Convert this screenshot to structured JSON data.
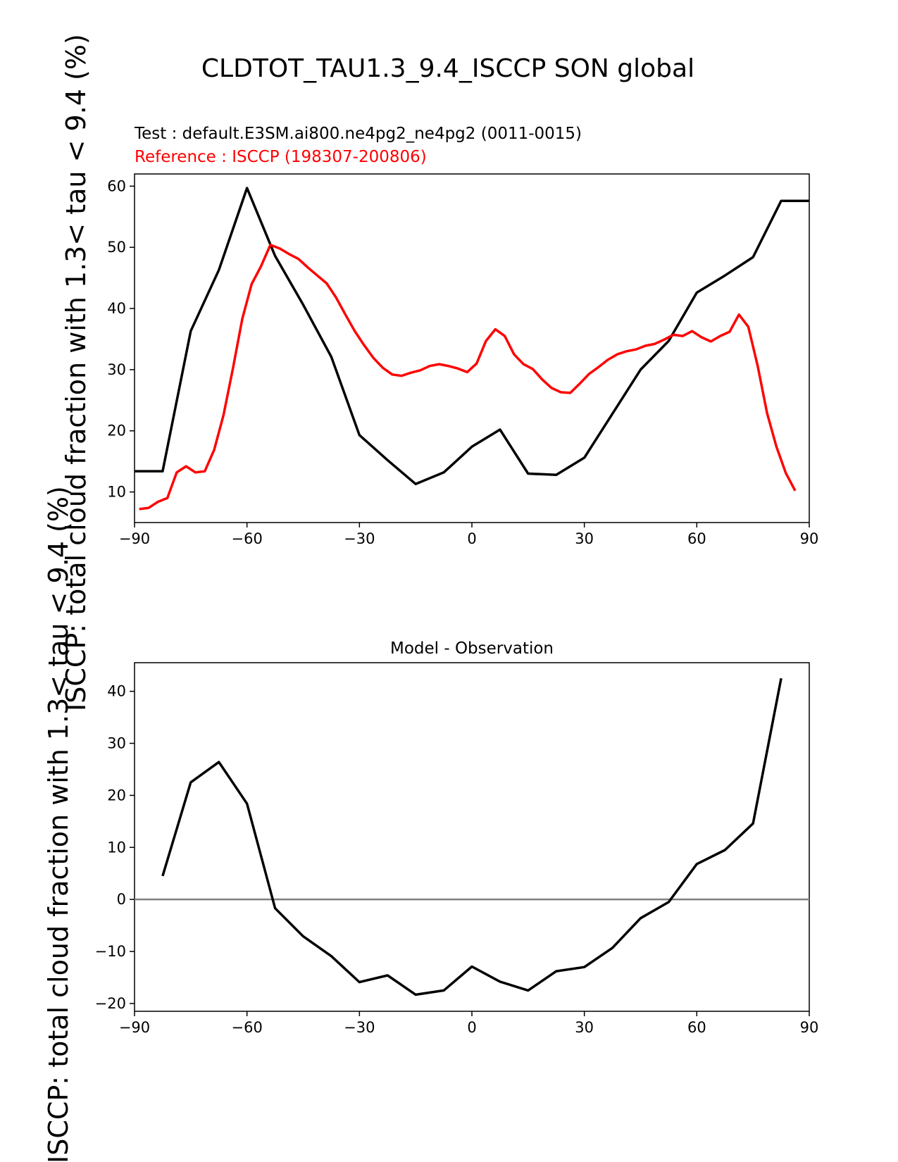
{
  "figure": {
    "title": "CLDTOT_TAU1.3_9.4_ISCCP SON global",
    "ylabel": "ISCCP: total cloud fraction with 1.3< tau < 9.4 (%)"
  },
  "colors": {
    "test": "#000000",
    "reference": "#ff0000",
    "zero_line": "#808080"
  },
  "chart_data": [
    {
      "type": "line",
      "subtitle_test": "Test : default.E3SM.ai800.ne4pg2_ne4pg2 (0011-0015)",
      "subtitle_reference": "Reference : ISCCP (198307-200806)",
      "xlim": [
        -90,
        90
      ],
      "ylim": [
        5,
        62
      ],
      "xticks": [
        -90,
        -60,
        -30,
        0,
        30,
        60,
        90
      ],
      "xtick_labels": [
        "−90",
        "−60",
        "−30",
        "0",
        "30",
        "60",
        "90"
      ],
      "yticks": [
        10,
        20,
        30,
        40,
        50,
        60
      ],
      "ytick_labels": [
        "10",
        "20",
        "30",
        "40",
        "50",
        "60"
      ],
      "series": [
        {
          "key": "test",
          "x": [
            -90,
            -82.5,
            -75,
            -67.5,
            -60,
            -52.5,
            -45,
            -37.5,
            -30,
            -22.5,
            -15,
            -7.5,
            0,
            7.5,
            15,
            22.5,
            30,
            37.5,
            45,
            52.5,
            60,
            67.5,
            75,
            82.5,
            90
          ],
          "y": [
            13.4,
            13.4,
            36.3,
            46.3,
            59.7,
            48.6,
            40.6,
            32.1,
            19.3,
            15.2,
            11.3,
            13.2,
            17.4,
            20.2,
            13.0,
            12.8,
            15.6,
            22.8,
            30.0,
            34.7,
            42.6,
            45.4,
            48.4,
            57.6,
            57.6
          ]
        },
        {
          "key": "reference",
          "x": [
            -88.75,
            -86.25,
            -83.75,
            -81.25,
            -78.75,
            -76.25,
            -73.75,
            -71.25,
            -68.75,
            -66.25,
            -63.75,
            -61.25,
            -58.75,
            -56.25,
            -53.75,
            -51.25,
            -48.75,
            -46.25,
            -43.75,
            -41.25,
            -38.75,
            -36.25,
            -33.75,
            -31.25,
            -28.75,
            -26.25,
            -23.75,
            -21.25,
            -18.75,
            -16.25,
            -13.75,
            -11.25,
            -8.75,
            -6.25,
            -3.75,
            -1.25,
            1.25,
            3.75,
            6.25,
            8.75,
            11.25,
            13.75,
            16.25,
            18.75,
            21.25,
            23.75,
            26.25,
            28.75,
            31.25,
            33.75,
            36.25,
            38.75,
            41.25,
            43.75,
            46.25,
            48.75,
            51.25,
            53.75,
            56.25,
            58.75,
            61.25,
            63.75,
            66.25,
            68.75,
            71.25,
            73.75,
            76.25,
            78.75,
            81.25,
            83.75,
            86.25
          ],
          "y": [
            7.2,
            7.4,
            8.4,
            9.0,
            13.2,
            14.2,
            13.2,
            13.4,
            16.9,
            22.6,
            30.2,
            38.3,
            44.0,
            46.9,
            50.4,
            49.8,
            48.9,
            48.1,
            46.7,
            45.4,
            44.1,
            41.8,
            39.0,
            36.3,
            34.0,
            31.9,
            30.3,
            29.2,
            29.0,
            29.5,
            29.9,
            30.6,
            30.9,
            30.6,
            30.2,
            29.6,
            31.0,
            34.7,
            36.6,
            35.5,
            32.5,
            30.9,
            30.1,
            28.4,
            27.0,
            26.3,
            26.2,
            27.7,
            29.3,
            30.4,
            31.6,
            32.5,
            33.0,
            33.3,
            33.9,
            34.2,
            34.9,
            35.7,
            35.5,
            36.3,
            35.3,
            34.6,
            35.5,
            36.2,
            39.0,
            37.0,
            30.6,
            22.9,
            17.4,
            13.1,
            10.2
          ]
        }
      ]
    },
    {
      "type": "line",
      "title": "Model - Observation",
      "xlim": [
        -90,
        90
      ],
      "ylim": [
        -21.5,
        45.5
      ],
      "xticks": [
        -90,
        -60,
        -30,
        0,
        30,
        60,
        90
      ],
      "xtick_labels": [
        "−90",
        "−60",
        "−30",
        "0",
        "30",
        "60",
        "90"
      ],
      "yticks": [
        -20,
        -10,
        0,
        10,
        20,
        30,
        40
      ],
      "ytick_labels": [
        "−20",
        "−10",
        "0",
        "10",
        "20",
        "30",
        "40"
      ],
      "zero_line": 0,
      "series": [
        {
          "key": "test",
          "x": [
            -82.5,
            -75,
            -67.5,
            -60,
            -52.5,
            -45,
            -37.5,
            -30,
            -22.5,
            -15,
            -7.5,
            0,
            7.5,
            15,
            22.5,
            30,
            37.5,
            45,
            52.5,
            60,
            67.5,
            75,
            82.5
          ],
          "y": [
            4.5,
            22.5,
            26.4,
            18.4,
            -1.7,
            -7.1,
            -10.9,
            -15.9,
            -14.6,
            -18.3,
            -17.5,
            -12.9,
            -15.8,
            -17.5,
            -13.8,
            -13.0,
            -9.3,
            -3.6,
            -0.5,
            6.8,
            9.5,
            14.6,
            42.5
          ]
        }
      ]
    }
  ]
}
